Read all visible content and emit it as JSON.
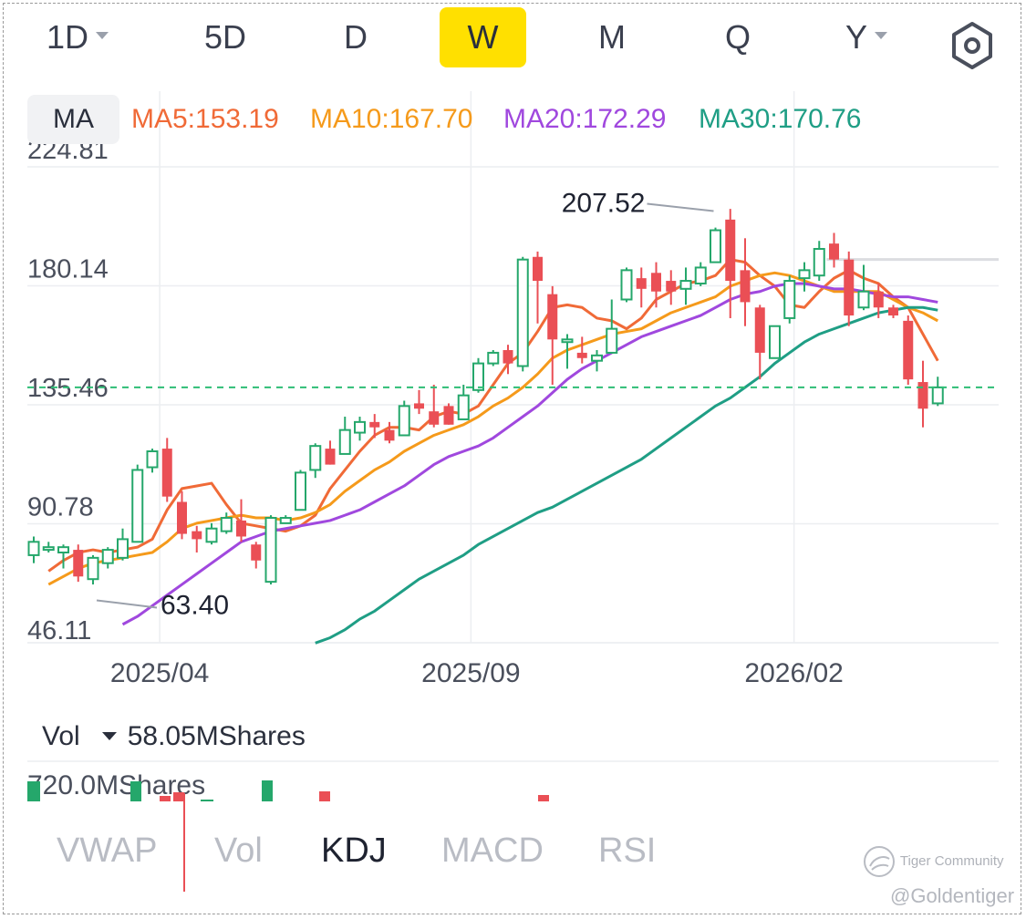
{
  "periods": [
    {
      "label": "1D",
      "caret": true
    },
    {
      "label": "5D",
      "caret": false
    },
    {
      "label": "D",
      "caret": false
    },
    {
      "label": "W",
      "caret": false,
      "active": true
    },
    {
      "label": "M",
      "caret": false
    },
    {
      "label": "Q",
      "caret": false
    },
    {
      "label": "Y",
      "caret": true
    }
  ],
  "ma": {
    "button": "MA",
    "items": [
      {
        "label": "MA5:153.19",
        "color": "#f06a37"
      },
      {
        "label": "MA10:167.70",
        "color": "#f59a1b"
      },
      {
        "label": "MA20:172.29",
        "color": "#a048de"
      },
      {
        "label": "MA30:170.76",
        "color": "#1f9e85"
      }
    ]
  },
  "volume": {
    "label": "Vol",
    "value": "58.05MShares",
    "axis_label": "720.0MShares"
  },
  "indicators": [
    {
      "label": "VWAP"
    },
    {
      "label": "Vol"
    },
    {
      "label": "KDJ",
      "active": true
    },
    {
      "label": "MACD"
    },
    {
      "label": "RSI"
    }
  ],
  "watermark": {
    "brand": "Tiger Community",
    "user": "@Goldentiger"
  },
  "colors": {
    "up": "#25a76b",
    "down": "#ea4f55",
    "ref_line": "#2ebd75",
    "accent": "#ffe000"
  },
  "chart_data": {
    "type": "candlestick",
    "ylim": [
      46.11,
      224.81
    ],
    "yticks": [
      "224.81",
      "180.14",
      "135.46",
      "90.78",
      "46.11"
    ],
    "xticks": [
      {
        "label": "2025/04",
        "index": 8.5
      },
      {
        "label": "2025/09",
        "index": 29.5
      },
      {
        "label": "2026/02",
        "index": 51.3
      }
    ],
    "last_price": 142.0,
    "annotations": [
      {
        "label": "207.52",
        "index": 46,
        "value": 207.52
      },
      {
        "label": "63.40",
        "index": 4,
        "value": 63.4
      }
    ],
    "resistance": 190.0,
    "candles": [
      [
        79,
        84,
        76,
        86
      ],
      [
        81,
        82,
        80,
        84
      ],
      [
        80,
        82,
        74,
        83
      ],
      [
        81,
        71,
        69,
        83
      ],
      [
        70,
        78,
        68,
        79
      ],
      [
        76,
        81,
        74,
        82
      ],
      [
        78,
        85,
        77,
        89
      ],
      [
        84,
        111,
        84,
        113
      ],
      [
        112,
        118,
        110,
        119
      ],
      [
        119,
        101,
        99,
        123
      ],
      [
        99,
        87,
        85,
        103
      ],
      [
        88,
        85,
        80,
        90
      ],
      [
        84,
        89,
        83,
        91
      ],
      [
        88,
        93,
        87,
        95
      ],
      [
        92,
        86,
        84,
        100
      ],
      [
        83,
        77,
        74,
        84
      ],
      [
        69,
        93,
        68,
        94
      ],
      [
        91,
        93,
        91,
        94
      ],
      [
        96,
        110,
        96,
        111
      ],
      [
        111,
        120,
        108,
        121
      ],
      [
        119,
        113,
        113,
        122
      ],
      [
        117,
        126,
        117,
        131
      ],
      [
        125,
        129,
        122,
        131
      ],
      [
        129,
        127,
        123,
        132
      ],
      [
        126,
        122,
        121,
        129
      ],
      [
        124,
        135,
        124,
        137
      ],
      [
        136,
        134,
        132,
        141
      ],
      [
        133,
        128,
        127,
        143
      ],
      [
        135,
        128,
        128,
        136
      ],
      [
        130,
        139,
        130,
        143
      ],
      [
        141,
        151,
        140,
        153
      ],
      [
        151,
        155,
        150,
        156
      ],
      [
        156,
        151,
        147,
        158
      ],
      [
        150,
        190,
        148,
        191
      ],
      [
        191,
        182,
        166,
        193
      ],
      [
        177,
        160,
        143,
        180
      ],
      [
        159,
        160,
        149,
        162
      ],
      [
        155,
        153,
        151,
        161
      ],
      [
        152,
        154,
        148,
        156
      ],
      [
        155,
        164,
        155,
        175
      ],
      [
        175,
        186,
        174,
        187
      ],
      [
        183,
        179,
        172,
        187
      ],
      [
        185,
        178,
        172,
        189
      ],
      [
        182,
        178,
        173,
        186
      ],
      [
        179,
        182,
        173,
        187
      ],
      [
        181,
        187,
        180,
        189
      ],
      [
        189,
        201,
        189,
        202
      ],
      [
        205,
        182,
        168,
        209
      ],
      [
        186,
        174,
        165,
        198
      ],
      [
        172,
        155,
        145,
        173
      ],
      [
        153,
        165,
        153,
        165
      ],
      [
        168,
        182,
        166,
        184
      ],
      [
        183,
        186,
        178,
        189
      ],
      [
        184,
        194,
        182,
        197
      ],
      [
        196,
        190,
        187,
        200
      ],
      [
        190,
        169,
        165,
        193
      ],
      [
        172,
        178,
        171,
        188
      ],
      [
        178,
        172,
        168,
        181
      ],
      [
        172,
        169,
        168,
        173
      ],
      [
        167,
        145,
        143,
        169
      ],
      [
        144,
        134,
        127,
        152
      ],
      [
        136,
        142,
        135,
        146
      ]
    ],
    "ma_series": [
      {
        "name": "MA5",
        "color": "#f06a37",
        "values": [
          73,
          77,
          80,
          81,
          80,
          81,
          82,
          85,
          96,
          104,
          105,
          106,
          98,
          91,
          90,
          89,
          88,
          90,
          94,
          104,
          111,
          118,
          124,
          127,
          127,
          126,
          131,
          133,
          132,
          135,
          143,
          151,
          155,
          163,
          172,
          173,
          172,
          168,
          167,
          164,
          168,
          175,
          178,
          181,
          182,
          184,
          190,
          189,
          184,
          180,
          173,
          172,
          178,
          183,
          186,
          183,
          181,
          176,
          172,
          162,
          152
        ]
      },
      {
        "name": "MA10",
        "color": "#f59a1b",
        "values": [
          68,
          71,
          74,
          76,
          77,
          78,
          79,
          80,
          84,
          89,
          91,
          92,
          93,
          94,
          93,
          93,
          92,
          93,
          95,
          98,
          103,
          107,
          111,
          114,
          118,
          121,
          124,
          126,
          128,
          131,
          135,
          138,
          142,
          147,
          153,
          156,
          158,
          160,
          162,
          163,
          164,
          167,
          170,
          172,
          174,
          176,
          180,
          182,
          184,
          185,
          184,
          182,
          180,
          178,
          178,
          178,
          178,
          175,
          172,
          170,
          167
        ]
      },
      {
        "name": "MA20",
        "color": "#a048de",
        "values": [
          53,
          56,
          60,
          64,
          68,
          72,
          76,
          80,
          84,
          86,
          88,
          89,
          90,
          91,
          92,
          94,
          96,
          99,
          102,
          105,
          109,
          113,
          116,
          118,
          120,
          123,
          127,
          131,
          135,
          140,
          145,
          149,
          152,
          155,
          158,
          161,
          163,
          165,
          167,
          169,
          172,
          175,
          177,
          178,
          180,
          181,
          181,
          180,
          179,
          179,
          178,
          177,
          176,
          176,
          175,
          174
        ]
      },
      {
        "name": "MA30",
        "color": "#1f9e85",
        "values": [
          46,
          48,
          51,
          55,
          58,
          62,
          66,
          70,
          73,
          76,
          79,
          83,
          86,
          89,
          92,
          95,
          97,
          100,
          103,
          106,
          109,
          112,
          115,
          119,
          123,
          127,
          131,
          135,
          138,
          142,
          146,
          151,
          155,
          159,
          162,
          164,
          166,
          168,
          170,
          171,
          172,
          172,
          171
        ]
      }
    ]
  }
}
